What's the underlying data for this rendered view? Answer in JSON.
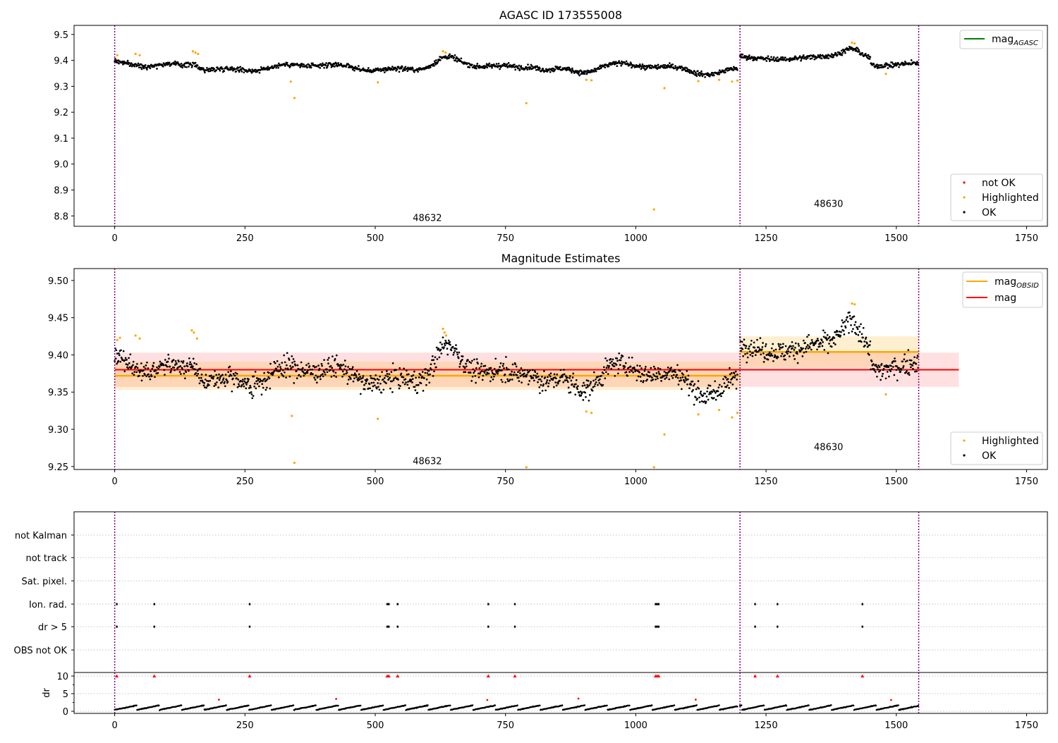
{
  "chart_data": [
    {
      "type": "scatter",
      "title": "AGASC ID 173555008",
      "xlim": [
        -78,
        1790
      ],
      "ylim": [
        8.76,
        9.535
      ],
      "xticks": [
        0,
        250,
        500,
        750,
        1000,
        1250,
        1500,
        1750
      ],
      "yticks": [
        8.8,
        8.9,
        9.0,
        9.1,
        9.2,
        9.3,
        9.4,
        9.5
      ],
      "ytick_labels": [
        "8.8",
        "8.9",
        "9.0",
        "9.1",
        "9.2",
        "9.3",
        "9.4",
        "9.5"
      ],
      "obsid_boundaries": [
        0,
        1200,
        1543
      ],
      "obsid_labels": [
        {
          "text": "48632",
          "x": 600,
          "y": 8.78
        },
        {
          "text": "48630",
          "x": 1370,
          "y": 8.835
        }
      ],
      "legend_top": [
        {
          "label": "mag",
          "sub": "AGASC",
          "color": "#008000"
        }
      ],
      "legend_bottom": [
        {
          "label": "not OK",
          "color": "#ff0000"
        },
        {
          "label": "Highlighted",
          "color": "#ffa500"
        },
        {
          "label": "OK",
          "color": "#000000"
        }
      ],
      "highlighted_points": [
        [
          5,
          9.42
        ],
        [
          40,
          9.425
        ],
        [
          48,
          9.42
        ],
        [
          150,
          9.435
        ],
        [
          155,
          9.43
        ],
        [
          160,
          9.425
        ],
        [
          338,
          9.318
        ],
        [
          345,
          9.255
        ],
        [
          505,
          9.315
        ],
        [
          630,
          9.435
        ],
        [
          635,
          9.43
        ],
        [
          790,
          9.235
        ],
        [
          905,
          9.325
        ],
        [
          915,
          9.323
        ],
        [
          1035,
          8.825
        ],
        [
          1055,
          9.293
        ],
        [
          1120,
          9.32
        ],
        [
          1160,
          9.325
        ],
        [
          1185,
          9.318
        ],
        [
          1195,
          9.322
        ],
        [
          1415,
          9.468
        ],
        [
          1420,
          9.465
        ],
        [
          1480,
          9.348
        ]
      ],
      "series": [
        {
          "name": "OK",
          "x_start": 0,
          "x_end": 1196,
          "step": 1,
          "base": 9.375,
          "offset": 0
        },
        {
          "name": "OK",
          "x_start": 1200,
          "x_end": 1543,
          "step": 1,
          "base": 9.405,
          "offset": 0
        }
      ]
    },
    {
      "type": "scatter",
      "title": "Magnitude Estimates",
      "xlim": [
        -78,
        1790
      ],
      "ylim": [
        9.246,
        9.516
      ],
      "xticks": [
        0,
        250,
        500,
        750,
        1000,
        1250,
        1500,
        1750
      ],
      "yticks": [
        9.25,
        9.3,
        9.35,
        9.4,
        9.45,
        9.5
      ],
      "ytick_labels": [
        "9.25",
        "9.30",
        "9.35",
        "9.40",
        "9.45",
        "9.50"
      ],
      "obsid_boundaries": [
        0,
        1200,
        1543
      ],
      "obsid_labels": [
        {
          "text": "48632",
          "x": 600,
          "y": 9.253
        },
        {
          "text": "48630",
          "x": 1370,
          "y": 9.272
        }
      ],
      "mag": 9.38,
      "mag_band": [
        9.357,
        9.403
      ],
      "mag_x_range": [
        0,
        1620
      ],
      "mag_obsid": [
        {
          "x0": 0,
          "x1": 1200,
          "value": 9.372,
          "band": [
            9.353,
            9.391
          ]
        },
        {
          "x0": 1200,
          "x1": 1543,
          "value": 9.404,
          "band": [
            9.383,
            9.425
          ]
        }
      ],
      "legend_top": [
        {
          "label": "mag",
          "sub": "OBSID",
          "color": "#ffa500"
        },
        {
          "label": "mag",
          "sub": "",
          "color": "#ff0000"
        }
      ],
      "legend_bottom": [
        {
          "label": "Highlighted",
          "color": "#ffa500"
        },
        {
          "label": "OK",
          "color": "#000000"
        }
      ],
      "highlighted_points": [
        [
          5,
          9.42
        ],
        [
          10,
          9.423
        ],
        [
          40,
          9.426
        ],
        [
          48,
          9.422
        ],
        [
          148,
          9.433
        ],
        [
          152,
          9.43
        ],
        [
          158,
          9.422
        ],
        [
          340,
          9.318
        ],
        [
          345,
          9.255
        ],
        [
          505,
          9.314
        ],
        [
          630,
          9.435
        ],
        [
          633,
          9.43
        ],
        [
          636,
          9.426
        ],
        [
          790,
          9.249
        ],
        [
          905,
          9.324
        ],
        [
          915,
          9.322
        ],
        [
          1035,
          9.249
        ],
        [
          1055,
          9.293
        ],
        [
          1120,
          9.32
        ],
        [
          1160,
          9.326
        ],
        [
          1185,
          9.316
        ],
        [
          1195,
          9.322
        ],
        [
          1415,
          9.469
        ],
        [
          1420,
          9.468
        ],
        [
          1480,
          9.347
        ]
      ]
    },
    {
      "type": "scatter",
      "title": "",
      "xlim": [
        -78,
        1790
      ],
      "xticks": [
        0,
        250,
        500,
        750,
        1000,
        1250,
        1500,
        1750
      ],
      "flag_rows": [
        "not Kalman",
        "not track",
        "Sat. pixel.",
        "Ion. rad.",
        "dr > 5",
        "OBS not OK"
      ],
      "flag_events": {
        "Ion. rad.": [
          4,
          76,
          259,
          523,
          526,
          543,
          717,
          768,
          1038,
          1041,
          1044,
          1229,
          1272,
          1435
        ],
        "dr > 5": [
          4,
          76,
          259,
          523,
          526,
          543,
          717,
          768,
          1038,
          1041,
          1044,
          1229,
          1272,
          1435
        ]
      },
      "dr_ylim": [
        -0.6,
        11
      ],
      "dr_yticks": [
        0,
        5,
        10
      ],
      "dr_ylabel": "dr",
      "dr_clipped": [
        4,
        76,
        259,
        523,
        526,
        543,
        717,
        768,
        1038,
        1041,
        1044,
        1229,
        1272,
        1435
      ],
      "dr_outliers": [
        [
          200,
          3.3
        ],
        [
          425,
          3.5
        ],
        [
          715,
          3.2
        ],
        [
          890,
          3.6
        ],
        [
          1115,
          3.3
        ],
        [
          1490,
          3.2
        ]
      ],
      "obsid_boundaries": [
        0,
        1200,
        1543
      ]
    }
  ]
}
